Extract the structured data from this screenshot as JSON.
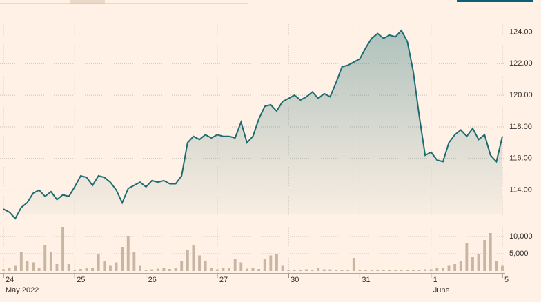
{
  "chart_data": [
    {
      "type": "area",
      "color": "#1d6b72",
      "grid": true,
      "xlim": [
        0,
        84
      ],
      "ylim": [
        112.5,
        124.5
      ],
      "yticks": [
        {
          "value": 114,
          "label": "114.00"
        },
        {
          "value": 116,
          "label": "116.00"
        },
        {
          "value": 118,
          "label": "118.00"
        },
        {
          "value": 120,
          "label": "120.00"
        },
        {
          "value": 122,
          "label": "122.00"
        },
        {
          "value": 124,
          "label": "124.00"
        }
      ],
      "xticks": [
        {
          "value": 0,
          "label": "24"
        },
        {
          "value": 12,
          "label": "25"
        },
        {
          "value": 24,
          "label": "26"
        },
        {
          "value": 36,
          "label": "27"
        },
        {
          "value": 48,
          "label": "30"
        },
        {
          "value": 60,
          "label": "31"
        },
        {
          "value": 72,
          "label": "1"
        },
        {
          "value": 84,
          "label": "5"
        }
      ],
      "month_labels": [
        {
          "value": 0,
          "label": "May 2022"
        },
        {
          "value": 72,
          "label": "June"
        }
      ],
      "values": [
        112.8,
        112.6,
        112.2,
        112.9,
        113.2,
        113.8,
        114.0,
        113.6,
        113.9,
        113.4,
        113.7,
        113.6,
        114.2,
        114.9,
        114.8,
        114.3,
        114.9,
        114.8,
        114.5,
        114.0,
        113.2,
        114.1,
        114.3,
        114.5,
        114.2,
        114.6,
        114.5,
        114.6,
        114.4,
        114.4,
        114.9,
        117.0,
        117.4,
        117.2,
        117.5,
        117.3,
        117.5,
        117.4,
        117.4,
        117.3,
        118.3,
        117.0,
        117.4,
        118.5,
        119.3,
        119.4,
        119.0,
        119.6,
        119.8,
        120.0,
        119.7,
        119.9,
        120.2,
        119.8,
        120.1,
        119.9,
        120.8,
        121.8,
        121.9,
        122.1,
        122.3,
        123.0,
        123.6,
        123.9,
        123.6,
        123.8,
        123.7,
        124.1,
        123.4,
        121.5,
        118.7,
        116.2,
        116.4,
        115.9,
        115.8,
        117.0,
        117.5,
        117.8,
        117.4,
        117.9,
        117.2,
        117.5,
        116.2,
        115.8,
        117.4
      ]
    },
    {
      "type": "bar",
      "color": "#c9b6a2",
      "grid": true,
      "xlim": [
        0,
        84
      ],
      "ylim": [
        0,
        13000
      ],
      "yticks": [
        {
          "value": 5000,
          "label": "5,000"
        },
        {
          "value": 10000,
          "label": "10,000"
        }
      ],
      "values": [
        500,
        800,
        1500,
        5500,
        3000,
        2500,
        1000,
        7500,
        5500,
        2000,
        12800,
        2000,
        300,
        600,
        1000,
        900,
        5000,
        3000,
        1500,
        2500,
        7000,
        10000,
        5500,
        1500,
        400,
        500,
        700,
        800,
        600,
        900,
        3000,
        6000,
        7500,
        4500,
        3000,
        800,
        500,
        1000,
        900,
        3500,
        2500,
        700,
        1000,
        600,
        3500,
        4500,
        5000,
        1500,
        300,
        400,
        400,
        500,
        400,
        1000,
        500,
        500,
        400,
        300,
        400,
        3800,
        300,
        300,
        300,
        300,
        400,
        300,
        300,
        300,
        300,
        400,
        400,
        500,
        500,
        800,
        1000,
        1500,
        2000,
        3000,
        8000,
        4000,
        5000,
        9000,
        11000,
        3000,
        1500
      ]
    }
  ]
}
